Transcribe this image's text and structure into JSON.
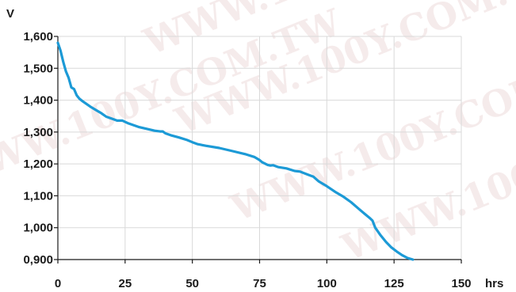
{
  "chart_data": {
    "type": "line",
    "ylabel": "V",
    "xlabel": "hrs",
    "xlim": [
      0,
      150
    ],
    "ylim": [
      900,
      1600
    ],
    "x_ticks": [
      "0",
      "25",
      "50",
      "75",
      "100",
      "125",
      "150"
    ],
    "y_ticks": [
      "0,900",
      "1,000",
      "1,100",
      "1,200",
      "1,300",
      "1,400",
      "1,500",
      "1,600"
    ],
    "x_tick_values": [
      0,
      25,
      50,
      75,
      100,
      125,
      150
    ],
    "y_tick_values": [
      900,
      1000,
      1100,
      1200,
      1300,
      1400,
      1500,
      1600
    ],
    "grid": true,
    "line_color": "#1c9ad6",
    "series": [
      {
        "x": [
          0,
          1,
          2,
          3,
          4,
          5,
          6,
          7,
          8,
          9,
          10,
          12,
          14,
          16,
          18,
          20,
          22,
          24,
          26,
          28,
          30,
          33,
          36,
          38,
          39,
          40,
          42,
          45,
          48,
          50,
          52,
          55,
          60,
          65,
          70,
          73,
          75,
          76,
          78,
          79,
          80,
          82,
          85,
          88,
          90,
          93,
          95,
          97,
          100,
          103,
          106,
          109,
          112,
          114,
          116,
          117,
          118,
          120,
          122,
          124,
          126,
          128,
          130,
          132
        ],
        "y": [
          1580,
          1555,
          1520,
          1490,
          1470,
          1440,
          1435,
          1415,
          1405,
          1398,
          1392,
          1380,
          1370,
          1360,
          1348,
          1342,
          1336,
          1336,
          1328,
          1322,
          1316,
          1310,
          1304,
          1302,
          1302,
          1296,
          1290,
          1283,
          1275,
          1268,
          1262,
          1257,
          1250,
          1240,
          1230,
          1222,
          1212,
          1205,
          1197,
          1195,
          1196,
          1190,
          1186,
          1178,
          1176,
          1166,
          1160,
          1145,
          1130,
          1113,
          1098,
          1080,
          1058,
          1044,
          1030,
          1022,
          1000,
          976,
          955,
          938,
          925,
          914,
          905,
          900
        ]
      }
    ]
  }
}
